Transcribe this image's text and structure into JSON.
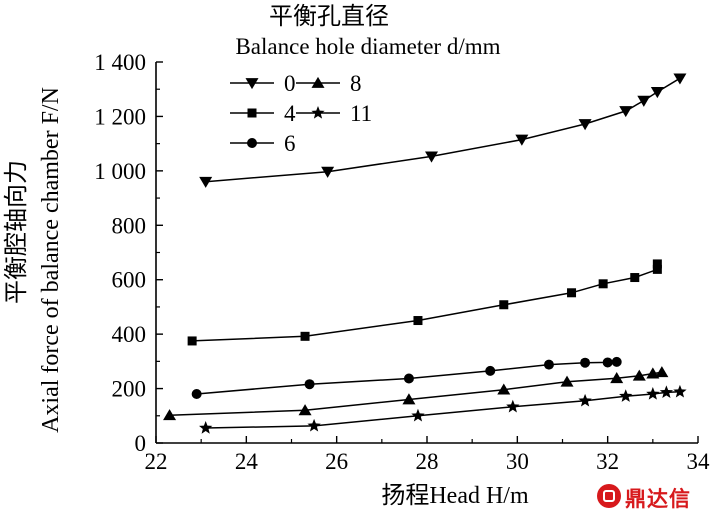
{
  "chart_data": {
    "type": "line",
    "xlabel": "扬程Head H/m",
    "ylabel_cn": "平衡腔轴向力",
    "ylabel": "Axial force of balance chamber F/N",
    "legend_title_cn": "平衡孔直径",
    "legend_title": "Balance hole diameter d/mm",
    "legend_position": "top-left",
    "xlim": [
      22,
      34
    ],
    "ylim": [
      0,
      1400
    ],
    "xticks": [
      22,
      24,
      26,
      28,
      30,
      32,
      34
    ],
    "xtick_labels": [
      "22",
      "24",
      "26",
      "28",
      "30",
      "32",
      "34"
    ],
    "yticks": [
      0,
      200,
      400,
      600,
      800,
      1000,
      1200,
      1400
    ],
    "ytick_labels": [
      "0",
      "200",
      "400",
      "600",
      "800",
      "1 000",
      "1 200",
      "1 400"
    ],
    "grid": false,
    "series": [
      {
        "name": "0",
        "marker": "triangle-down",
        "points": [
          [
            23.1,
            960
          ],
          [
            25.8,
            997
          ],
          [
            28.1,
            1053
          ],
          [
            30.1,
            1115
          ],
          [
            31.5,
            1172
          ],
          [
            32.4,
            1220
          ],
          [
            32.8,
            1258
          ],
          [
            33.1,
            1290
          ],
          [
            33.6,
            1340
          ]
        ]
      },
      {
        "name": "4",
        "marker": "square",
        "points": [
          [
            22.8,
            375
          ],
          [
            25.3,
            392
          ],
          [
            27.8,
            450
          ],
          [
            29.7,
            508
          ],
          [
            31.2,
            552
          ],
          [
            31.9,
            585
          ],
          [
            32.6,
            608
          ],
          [
            33.1,
            638
          ],
          [
            33.1,
            658
          ]
        ]
      },
      {
        "name": "6",
        "marker": "circle",
        "points": [
          [
            22.9,
            180
          ],
          [
            25.4,
            216
          ],
          [
            27.6,
            237
          ],
          [
            29.4,
            265
          ],
          [
            30.7,
            288
          ],
          [
            31.5,
            295
          ],
          [
            32.0,
            296
          ],
          [
            32.2,
            298
          ]
        ]
      },
      {
        "name": "8",
        "marker": "triangle-up",
        "points": [
          [
            22.3,
            102
          ],
          [
            25.3,
            120
          ],
          [
            27.6,
            160
          ],
          [
            29.7,
            196
          ],
          [
            31.1,
            225
          ],
          [
            32.2,
            238
          ],
          [
            32.7,
            247
          ],
          [
            33.0,
            255
          ],
          [
            33.2,
            260
          ]
        ]
      },
      {
        "name": "11",
        "marker": "star",
        "points": [
          [
            23.1,
            55
          ],
          [
            25.5,
            63
          ],
          [
            27.8,
            100
          ],
          [
            29.9,
            133
          ],
          [
            31.5,
            155
          ],
          [
            32.4,
            172
          ],
          [
            33.0,
            180
          ],
          [
            33.3,
            186
          ],
          [
            33.6,
            188
          ]
        ]
      }
    ]
  },
  "watermark": {
    "text": "鼎达信",
    "color": "#d7191c"
  }
}
